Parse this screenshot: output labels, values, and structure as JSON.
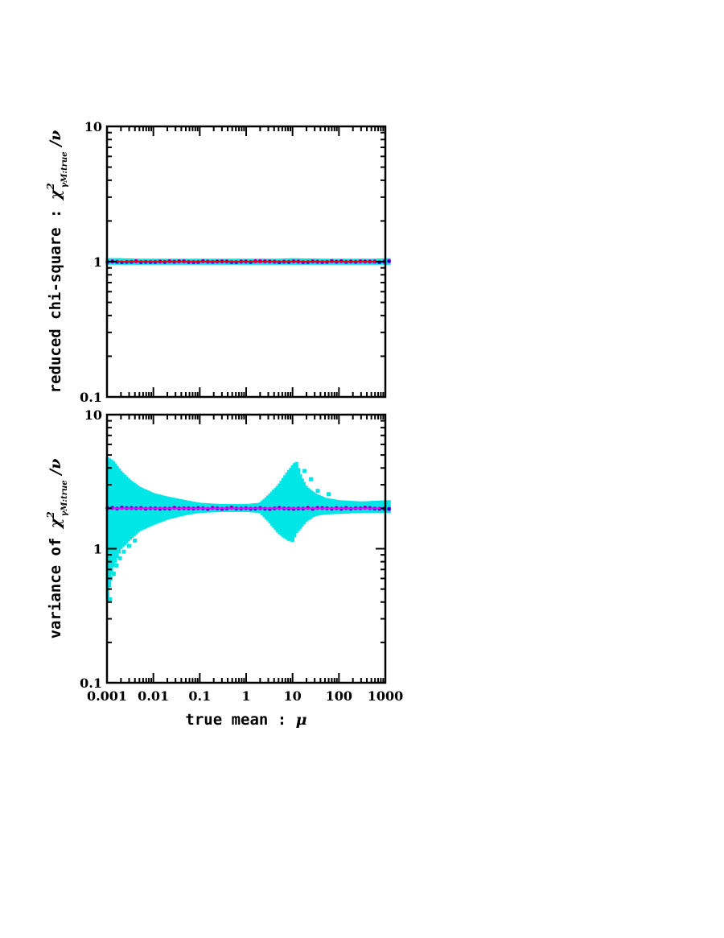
{
  "chart_data": [
    {
      "type": "scatter",
      "panel": "top",
      "ylabel_text": "reduced chi-square : ",
      "ylabel_symbol": "χ",
      "ylabel_sup": "2",
      "ylabel_sub": "γM:true",
      "ylabel_tail": " /ν",
      "x_scale": "log",
      "y_scale": "log",
      "xlim": [
        0.001,
        1000
      ],
      "ylim": [
        0.1,
        10
      ],
      "y_ticks": [
        {
          "value": 0.1,
          "label": "0.1"
        },
        {
          "value": 1,
          "label": "1"
        },
        {
          "value": 10,
          "label": "10"
        }
      ],
      "reference_line": {
        "y": 1,
        "color": "#ff0000"
      },
      "center_y": 1.0,
      "band_upper": [
        [
          0.00103,
          1.06
        ],
        [
          0.002,
          1.06
        ],
        [
          0.005,
          1.05
        ],
        [
          0.01,
          1.05
        ],
        [
          0.05,
          1.05
        ],
        [
          0.1,
          1.05
        ],
        [
          0.5,
          1.05
        ],
        [
          1,
          1.05
        ],
        [
          5,
          1.05
        ],
        [
          10,
          1.06
        ],
        [
          50,
          1.05
        ],
        [
          100,
          1.05
        ],
        [
          500,
          1.05
        ],
        [
          1200,
          1.06
        ]
      ],
      "band_lower": [
        [
          0.00103,
          0.95
        ],
        [
          0.002,
          0.95
        ],
        [
          0.005,
          0.95
        ],
        [
          0.01,
          0.95
        ],
        [
          0.05,
          0.95
        ],
        [
          0.1,
          0.95
        ],
        [
          0.5,
          0.95
        ],
        [
          1,
          0.95
        ],
        [
          5,
          0.95
        ],
        [
          10,
          0.95
        ],
        [
          50,
          0.95
        ],
        [
          100,
          0.95
        ],
        [
          500,
          0.95
        ],
        [
          1200,
          0.95
        ]
      ],
      "colors": {
        "band": "#00e5e5",
        "points": "#0000cc",
        "ring": "#cc00cc",
        "reference": "#ff0000",
        "frame": "#000000"
      }
    },
    {
      "type": "scatter",
      "panel": "bottom",
      "ylabel_text": "variance of ",
      "ylabel_symbol": "χ",
      "ylabel_sup": "2",
      "ylabel_sub": "γM:true",
      "ylabel_tail": " /ν",
      "xlabel_text": "true mean : ",
      "xlabel_symbol": "μ",
      "x_scale": "log",
      "y_scale": "log",
      "xlim": [
        0.001,
        1000
      ],
      "ylim": [
        0.1,
        10
      ],
      "x_ticks": [
        {
          "value": 0.001,
          "label": "0.001"
        },
        {
          "value": 0.01,
          "label": "0.01"
        },
        {
          "value": 0.1,
          "label": "0.1"
        },
        {
          "value": 1,
          "label": "1"
        },
        {
          "value": 10,
          "label": "10"
        },
        {
          "value": 100,
          "label": "100"
        },
        {
          "value": 1000,
          "label": "1000"
        }
      ],
      "y_ticks": [
        {
          "value": 0.1,
          "label": "0.1"
        },
        {
          "value": 1,
          "label": "1"
        },
        {
          "value": 10,
          "label": "10"
        }
      ],
      "reference_line": {
        "y": 2,
        "color": "#ff00ff"
      },
      "center_y": 2.0,
      "band_upper": [
        [
          0.00103,
          4.8
        ],
        [
          0.0013,
          4.6
        ],
        [
          0.002,
          3.8
        ],
        [
          0.003,
          3.3
        ],
        [
          0.005,
          2.9
        ],
        [
          0.01,
          2.6
        ],
        [
          0.02,
          2.45
        ],
        [
          0.05,
          2.3
        ],
        [
          0.1,
          2.2
        ],
        [
          0.3,
          2.15
        ],
        [
          1,
          2.15
        ],
        [
          2,
          2.2
        ],
        [
          3,
          2.5
        ],
        [
          5,
          3.0
        ],
        [
          8,
          3.8
        ],
        [
          12,
          4.5
        ],
        [
          15,
          3.5
        ],
        [
          20,
          2.9
        ],
        [
          30,
          2.6
        ],
        [
          50,
          2.4
        ],
        [
          100,
          2.3
        ],
        [
          300,
          2.25
        ],
        [
          1200,
          2.3
        ]
      ],
      "band_lower": [
        [
          0.00103,
          0.42
        ],
        [
          0.0013,
          0.7
        ],
        [
          0.002,
          1.0
        ],
        [
          0.003,
          1.15
        ],
        [
          0.005,
          1.35
        ],
        [
          0.01,
          1.5
        ],
        [
          0.02,
          1.65
        ],
        [
          0.05,
          1.78
        ],
        [
          0.1,
          1.85
        ],
        [
          0.3,
          1.88
        ],
        [
          1,
          1.88
        ],
        [
          2,
          1.85
        ],
        [
          3,
          1.6
        ],
        [
          5,
          1.3
        ],
        [
          8,
          1.15
        ],
        [
          10,
          1.12
        ],
        [
          12,
          1.3
        ],
        [
          20,
          1.6
        ],
        [
          30,
          1.75
        ],
        [
          50,
          1.8
        ],
        [
          100,
          1.82
        ],
        [
          300,
          1.85
        ],
        [
          1200,
          1.85
        ]
      ],
      "scatter_outliers": [
        [
          0.00115,
          0.42
        ],
        [
          0.0012,
          0.6
        ],
        [
          0.0014,
          0.65
        ],
        [
          0.0016,
          0.75
        ],
        [
          0.0019,
          0.85
        ],
        [
          0.0023,
          0.95
        ],
        [
          0.003,
          1.05
        ],
        [
          0.004,
          1.15
        ],
        [
          18,
          3.8
        ],
        [
          25,
          3.3
        ],
        [
          35,
          2.7
        ],
        [
          60,
          2.55
        ]
      ],
      "colors": {
        "band": "#00e5e5",
        "points": "#0000cc",
        "ring": "#cc00cc",
        "reference": "#ff00ff",
        "frame": "#000000"
      }
    }
  ]
}
